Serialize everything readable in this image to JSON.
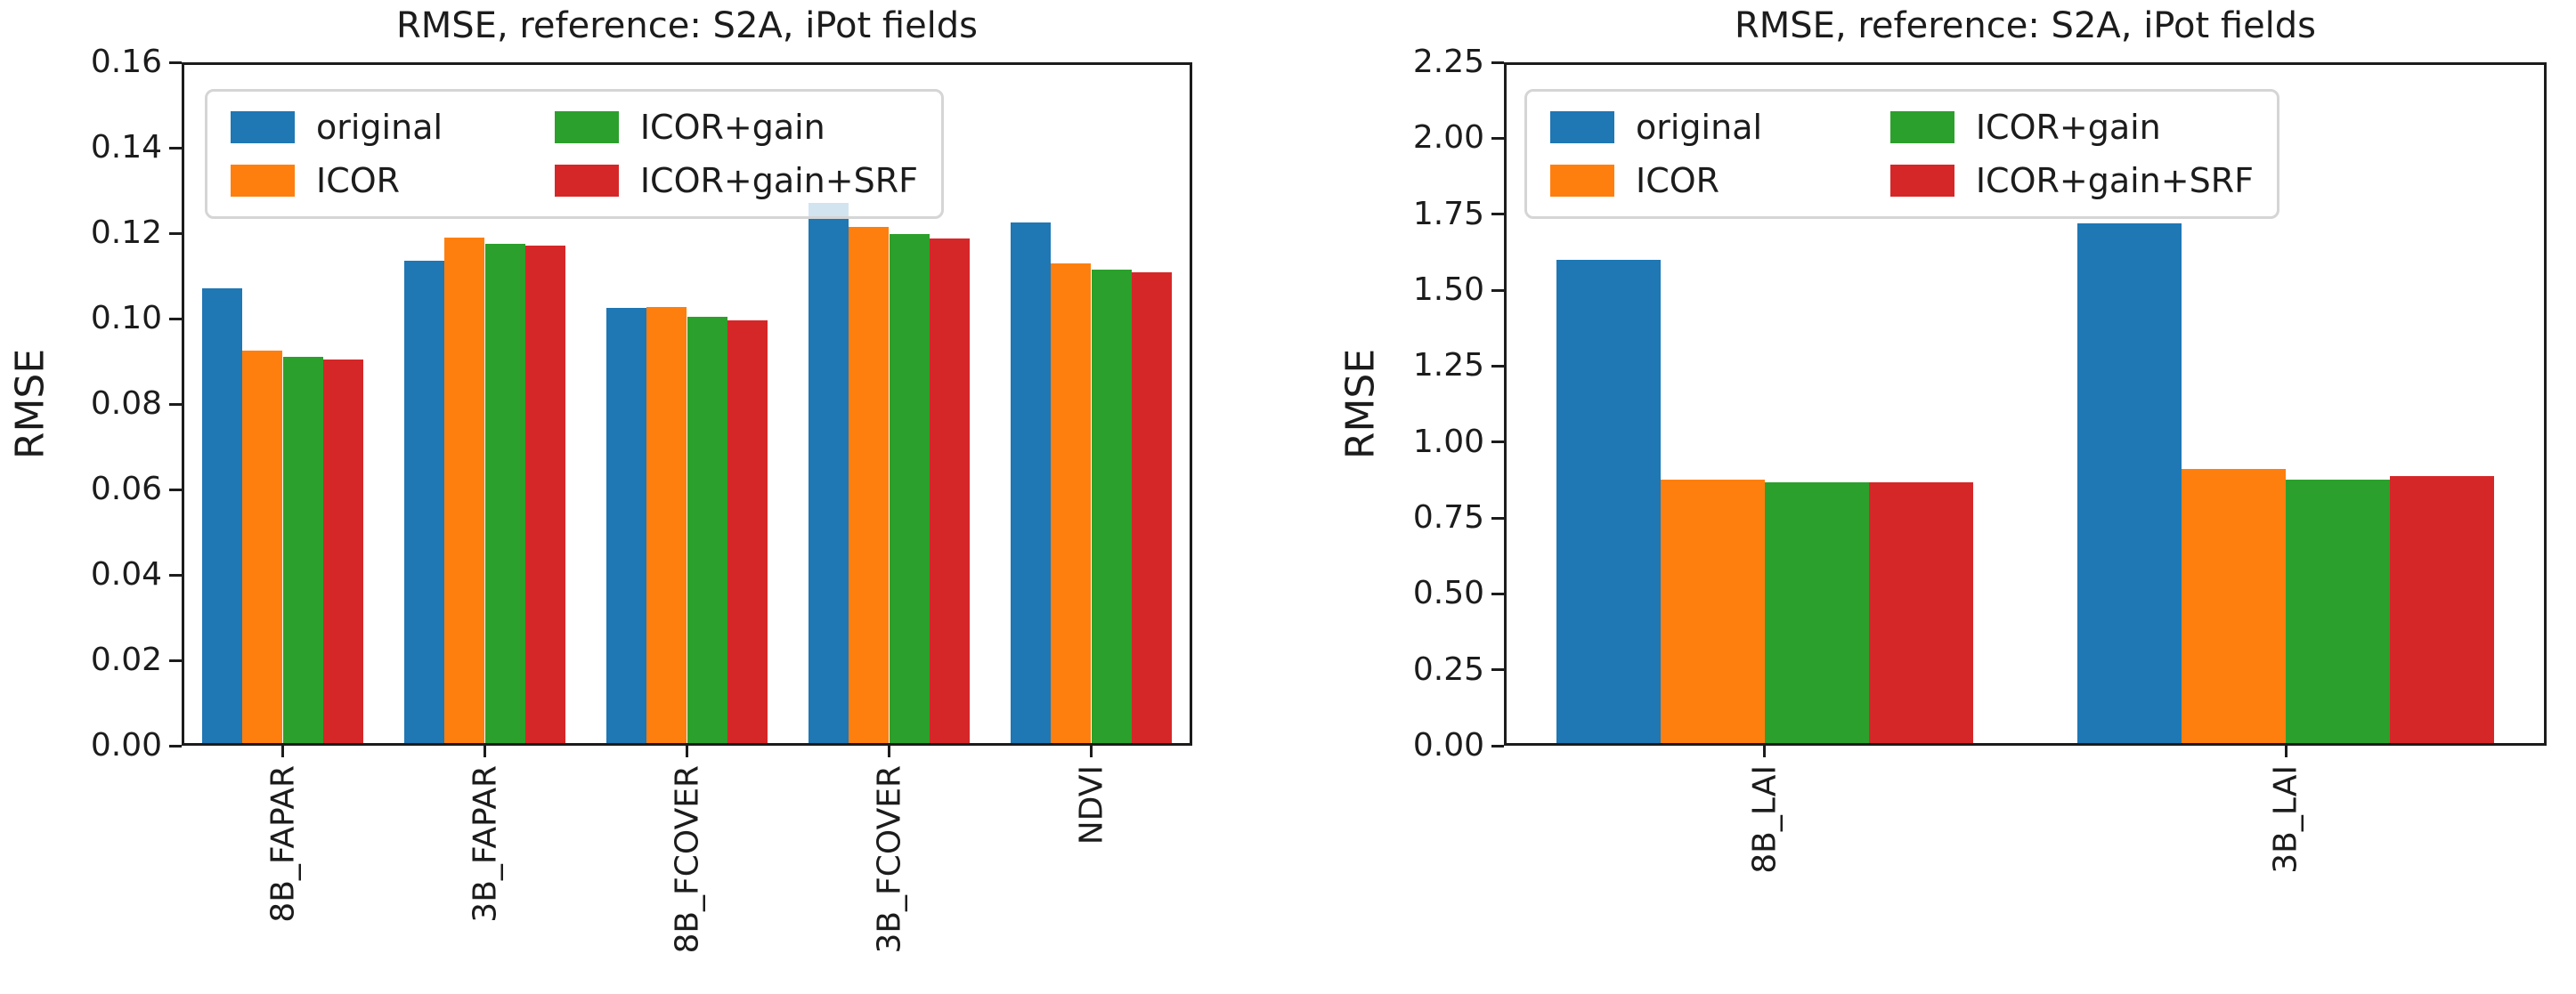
{
  "figure": {
    "background": "#ffffff",
    "text_color": "#1c1c1c",
    "axis_color": "#1c1c1c"
  },
  "legend": {
    "items": [
      {
        "label": "original",
        "color": "#1f77b4"
      },
      {
        "label": "ICOR",
        "color": "#ff7f0e"
      },
      {
        "label": "ICOR+gain",
        "color": "#2ca02c"
      },
      {
        "label": "ICOR+gain+SRF",
        "color": "#d62728"
      }
    ]
  },
  "chart_data": [
    {
      "type": "bar",
      "title": "RMSE, reference: S2A, iPot fields",
      "xlabel": "",
      "ylabel": "RMSE",
      "categories": [
        "8B_FAPAR",
        "3B_FAPAR",
        "8B_FCOVER",
        "3B_FCOVER",
        "NDVI"
      ],
      "series": [
        {
          "name": "original",
          "color": "#1f77b4",
          "values": [
            0.107,
            0.1135,
            0.1025,
            0.127,
            0.1225
          ]
        },
        {
          "name": "ICOR",
          "color": "#ff7f0e",
          "values": [
            0.0925,
            0.119,
            0.1027,
            0.1215,
            0.113
          ]
        },
        {
          "name": "ICOR+gain",
          "color": "#2ca02c",
          "values": [
            0.091,
            0.1175,
            0.1005,
            0.1197,
            0.1115
          ]
        },
        {
          "name": "ICOR+gain+SRF",
          "color": "#d62728",
          "values": [
            0.0905,
            0.117,
            0.0995,
            0.1188,
            0.1108
          ]
        }
      ],
      "ylim": [
        0,
        0.16
      ],
      "yticks": [
        "0.00",
        "0.02",
        "0.04",
        "0.06",
        "0.08",
        "0.10",
        "0.12",
        "0.14",
        "0.16"
      ],
      "xtick_rotation": 90,
      "grid": false,
      "legend_position": "upper left",
      "legend_ncol": 2
    },
    {
      "type": "bar",
      "title": "RMSE, reference: S2A, iPot fields",
      "xlabel": "",
      "ylabel": "RMSE",
      "categories": [
        "8B_LAI",
        "3B_LAI"
      ],
      "series": [
        {
          "name": "original",
          "color": "#1f77b4",
          "values": [
            1.6,
            1.72
          ]
        },
        {
          "name": "ICOR",
          "color": "#ff7f0e",
          "values": [
            0.875,
            0.91
          ]
        },
        {
          "name": "ICOR+gain",
          "color": "#2ca02c",
          "values": [
            0.866,
            0.877
          ]
        },
        {
          "name": "ICOR+gain+SRF",
          "color": "#d62728",
          "values": [
            0.868,
            0.888
          ]
        }
      ],
      "ylim": [
        0,
        2.25
      ],
      "yticks": [
        "0.00",
        "0.25",
        "0.50",
        "0.75",
        "1.00",
        "1.25",
        "1.50",
        "1.75",
        "2.00",
        "2.25"
      ],
      "xtick_rotation": 90,
      "grid": false,
      "legend_position": "upper left",
      "legend_ncol": 2
    }
  ]
}
